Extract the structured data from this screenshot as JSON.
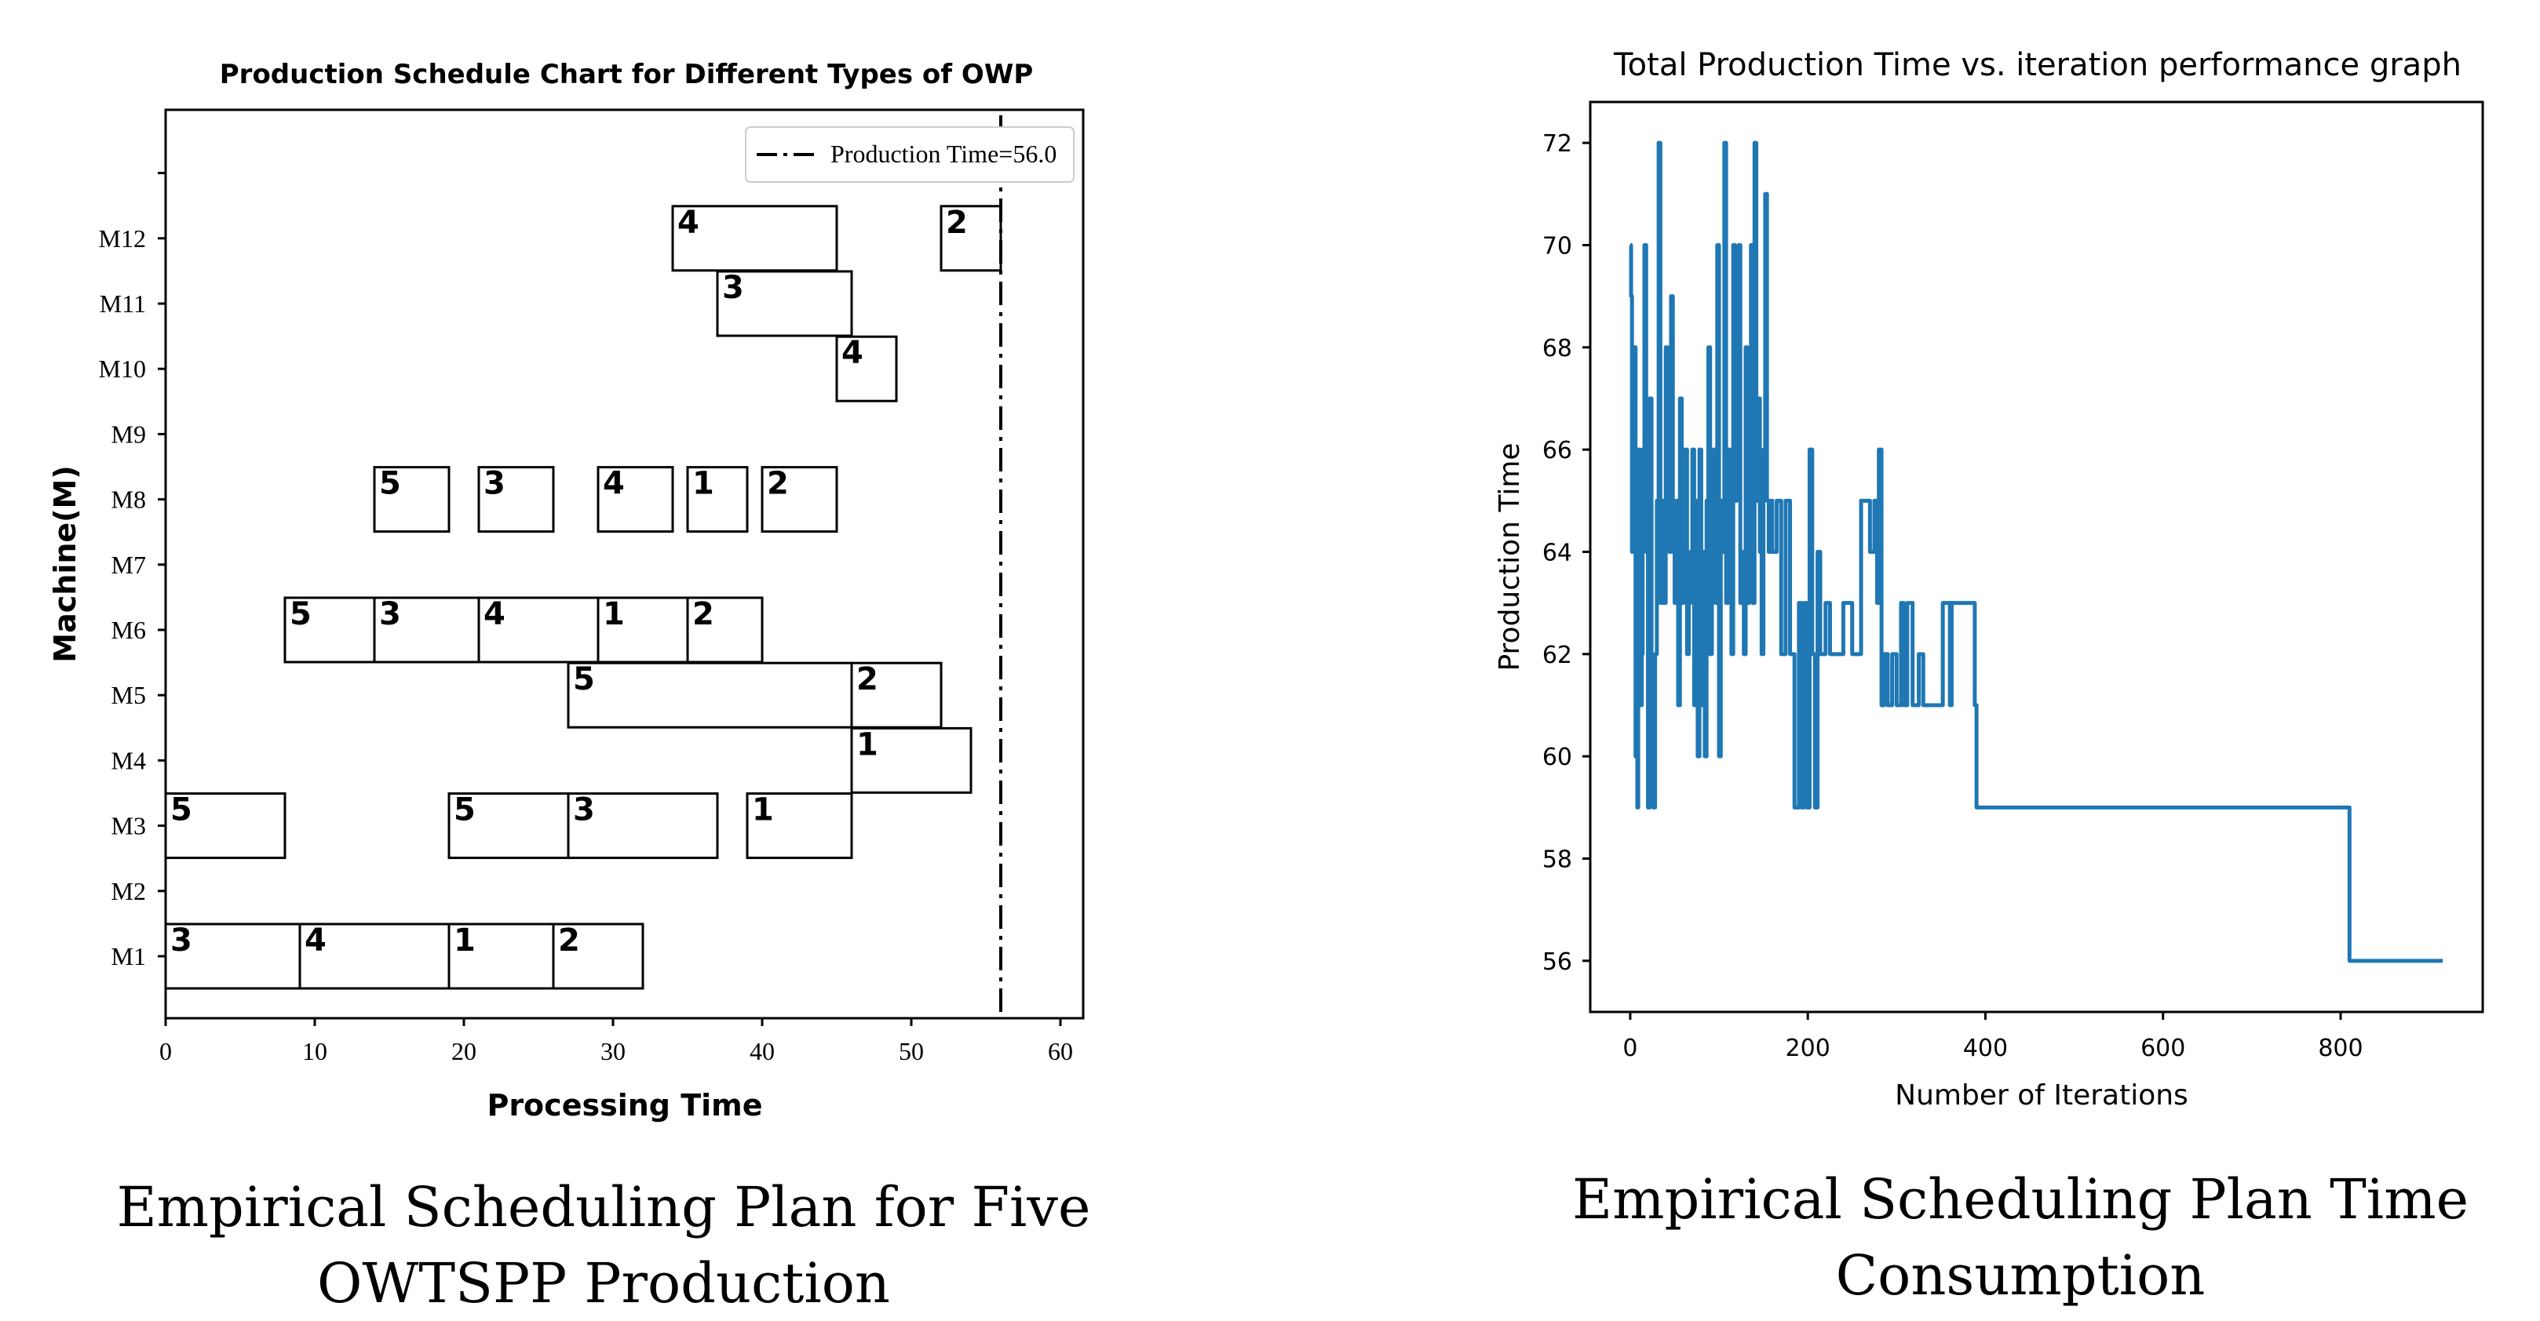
{
  "chart_data": [
    {
      "type": "gantt",
      "title": "Production Schedule Chart for Different Types of OWP",
      "xlabel": "Processing Time",
      "ylabel": "Machine(M)",
      "xlim": [
        0,
        61.5
      ],
      "xticks": [
        "0",
        "10",
        "20",
        "30",
        "40",
        "50",
        "60"
      ],
      "machines": [
        "M1",
        "M2",
        "M3",
        "M4",
        "M5",
        "M6",
        "M7",
        "M8",
        "M9",
        "M10",
        "M11",
        "M12"
      ],
      "legend": "Production Time=56.0",
      "production_time": 56.0,
      "tasks": [
        {
          "machine": 1,
          "start": 0,
          "end": 9,
          "label": "3"
        },
        {
          "machine": 1,
          "start": 9,
          "end": 19,
          "label": "4"
        },
        {
          "machine": 1,
          "start": 19,
          "end": 26,
          "label": "1"
        },
        {
          "machine": 1,
          "start": 26,
          "end": 32,
          "label": "2"
        },
        {
          "machine": 3,
          "start": 0,
          "end": 8,
          "label": "5"
        },
        {
          "machine": 3,
          "start": 19,
          "end": 27,
          "label": "5"
        },
        {
          "machine": 3,
          "start": 27,
          "end": 37,
          "label": "3"
        },
        {
          "machine": 3,
          "start": 39,
          "end": 46,
          "label": "1"
        },
        {
          "machine": 4,
          "start": 46,
          "end": 54,
          "label": "1"
        },
        {
          "machine": 5,
          "start": 27,
          "end": 46,
          "label": "5"
        },
        {
          "machine": 5,
          "start": 46,
          "end": 52,
          "label": "2"
        },
        {
          "machine": 6,
          "start": 8,
          "end": 14,
          "label": "5"
        },
        {
          "machine": 6,
          "start": 14,
          "end": 21,
          "label": "3"
        },
        {
          "machine": 6,
          "start": 21,
          "end": 29,
          "label": "4"
        },
        {
          "machine": 6,
          "start": 29,
          "end": 35,
          "label": "1"
        },
        {
          "machine": 6,
          "start": 35,
          "end": 40,
          "label": "2"
        },
        {
          "machine": 8,
          "start": 14,
          "end": 19,
          "label": "5"
        },
        {
          "machine": 8,
          "start": 21,
          "end": 26,
          "label": "3"
        },
        {
          "machine": 8,
          "start": 29,
          "end": 34,
          "label": "4"
        },
        {
          "machine": 8,
          "start": 35,
          "end": 39,
          "label": "1"
        },
        {
          "machine": 8,
          "start": 40,
          "end": 45,
          "label": "2"
        },
        {
          "machine": 10,
          "start": 45,
          "end": 49,
          "label": "4"
        },
        {
          "machine": 11,
          "start": 37,
          "end": 46,
          "label": "3"
        },
        {
          "machine": 12,
          "start": 34,
          "end": 45,
          "label": "4"
        },
        {
          "machine": 12,
          "start": 52,
          "end": 56,
          "label": "2"
        }
      ],
      "caption": [
        "Empirical Scheduling Plan for Five",
        "OWTSPP Production"
      ]
    },
    {
      "type": "line",
      "title": "Total Production Time vs. iteration performance graph",
      "xlabel": "Number of Iterations",
      "ylabel": "Production Time",
      "xlim": [
        -45,
        960
      ],
      "ylim": [
        55,
        72.8
      ],
      "xticks": [
        0,
        200,
        400,
        600,
        800
      ],
      "yticks": [
        56,
        58,
        60,
        62,
        64,
        66,
        68,
        70,
        72
      ],
      "color": "#1f77b4",
      "series": [
        {
          "name": "Production Time",
          "x": [
            0,
            1,
            2,
            3,
            4,
            5,
            6,
            7,
            8,
            9,
            10,
            11,
            12,
            13,
            14,
            16,
            18,
            20,
            22,
            24,
            26,
            28,
            30,
            32,
            34,
            36,
            38,
            40,
            42,
            44,
            46,
            48,
            50,
            52,
            54,
            56,
            58,
            60,
            62,
            64,
            66,
            68,
            70,
            72,
            74,
            76,
            78,
            80,
            82,
            84,
            86,
            88,
            90,
            92,
            94,
            96,
            98,
            100,
            102,
            104,
            106,
            108,
            110,
            112,
            114,
            116,
            118,
            120,
            122,
            124,
            126,
            128,
            130,
            132,
            134,
            136,
            138,
            140,
            142,
            144,
            146,
            148,
            150,
            152,
            154,
            156,
            158,
            160,
            165,
            170,
            175,
            180,
            185,
            190,
            193,
            196,
            199,
            202,
            205,
            208,
            211,
            214,
            220,
            225,
            230,
            240,
            250,
            255,
            260,
            265,
            270,
            275,
            278,
            280,
            283,
            286,
            290,
            295,
            300,
            305,
            308,
            312,
            318,
            320,
            325,
            330,
            350,
            352,
            360,
            362,
            388,
            390,
            808,
            810,
            915
          ],
          "y": [
            70,
            69,
            64,
            67,
            64,
            68,
            60,
            66,
            59,
            65,
            66,
            64,
            61,
            62,
            66,
            70,
            64,
            59,
            67,
            60,
            59,
            62,
            65,
            72,
            63,
            65,
            63,
            68,
            65,
            64,
            69,
            64,
            63,
            65,
            61,
            67,
            63,
            64,
            66,
            62,
            63,
            64,
            66,
            61,
            65,
            60,
            66,
            61,
            64,
            60,
            65,
            68,
            62,
            64,
            66,
            63,
            70,
            60,
            65,
            64,
            72,
            63,
            66,
            64,
            62,
            70,
            65,
            67,
            70,
            63,
            64,
            62,
            68,
            63,
            67,
            70,
            63,
            72,
            65,
            67,
            64,
            62,
            66,
            71,
            65,
            64,
            65,
            64,
            65,
            62,
            65,
            62,
            59,
            63,
            59,
            63,
            59,
            66,
            62,
            59,
            64,
            62,
            63,
            62,
            62,
            63,
            62,
            62,
            65,
            65,
            64,
            65,
            63,
            66,
            61,
            62,
            61,
            62,
            61,
            63,
            61,
            63,
            61,
            61,
            62,
            61,
            61,
            63,
            61,
            63,
            61,
            59,
            59,
            56,
            56
          ]
        }
      ],
      "caption": [
        "Empirical Scheduling Plan Time",
        "Consumption"
      ]
    }
  ]
}
